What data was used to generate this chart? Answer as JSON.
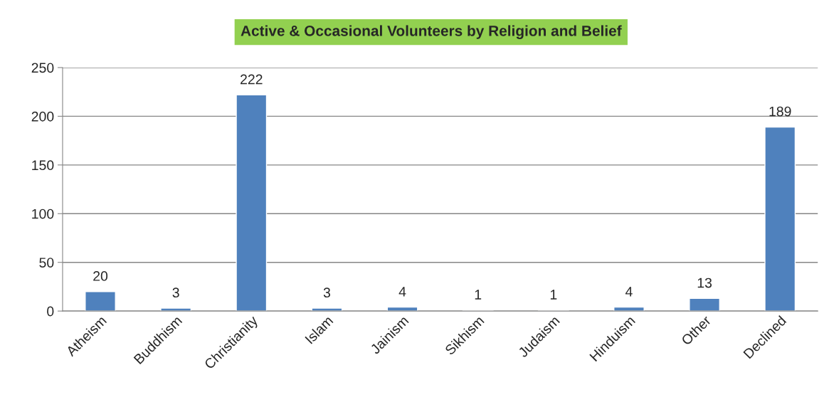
{
  "chart_data": {
    "type": "bar",
    "title": "Active & Occasional Volunteers by Religion and Belief",
    "categories": [
      "Atheism",
      "Buddhism",
      "Christianity",
      "Islam",
      "Jainism",
      "Sikhism",
      "Judaism",
      "Hinduism",
      "Other",
      "Declined"
    ],
    "values": [
      20,
      3,
      222,
      3,
      4,
      1,
      1,
      4,
      13,
      189
    ],
    "color": "#4f81bd",
    "ylim": [
      0,
      250
    ],
    "yticks": [
      0,
      50,
      100,
      150,
      200,
      250
    ],
    "grid": "y",
    "data_labels": true
  }
}
